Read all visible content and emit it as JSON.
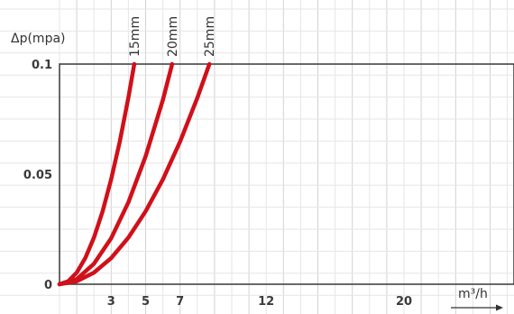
{
  "chart_data": {
    "type": "line",
    "ylabel": "Δp(mpa)",
    "xlabel": "m³/h",
    "xlim": [
      0,
      28
    ],
    "ylim": [
      0,
      0.1
    ],
    "x_ticks": [
      3,
      5,
      7,
      12,
      20
    ],
    "y_ticks": [
      {
        "value": 0,
        "label": "0"
      },
      {
        "value": 0.05,
        "label": "0.05"
      },
      {
        "value": 0.1,
        "label": "0.1"
      }
    ],
    "grid": true,
    "series": [
      {
        "name": "15mm",
        "color": "#d0101a",
        "points": [
          [
            0,
            0
          ],
          [
            0.5,
            0.0013
          ],
          [
            1,
            0.0053
          ],
          [
            1.5,
            0.012
          ],
          [
            2,
            0.0212
          ],
          [
            2.5,
            0.0331
          ],
          [
            3,
            0.0477
          ],
          [
            3.5,
            0.0649
          ],
          [
            4,
            0.0848
          ],
          [
            4.34,
            0.1
          ]
        ]
      },
      {
        "name": "20mm",
        "color": "#d0101a",
        "points": [
          [
            0,
            0
          ],
          [
            1,
            0.0023
          ],
          [
            2,
            0.0093
          ],
          [
            3,
            0.0209
          ],
          [
            4,
            0.0372
          ],
          [
            5,
            0.0581
          ],
          [
            6,
            0.0837
          ],
          [
            6.54,
            0.1
          ]
        ]
      },
      {
        "name": "25mm",
        "color": "#d0101a",
        "points": [
          [
            0,
            0
          ],
          [
            1,
            0.0013
          ],
          [
            2,
            0.0053
          ],
          [
            3,
            0.0119
          ],
          [
            4,
            0.0212
          ],
          [
            5,
            0.0331
          ],
          [
            6,
            0.0476
          ],
          [
            7,
            0.0648
          ],
          [
            8,
            0.0846
          ],
          [
            8.7,
            0.1
          ]
        ]
      }
    ]
  }
}
